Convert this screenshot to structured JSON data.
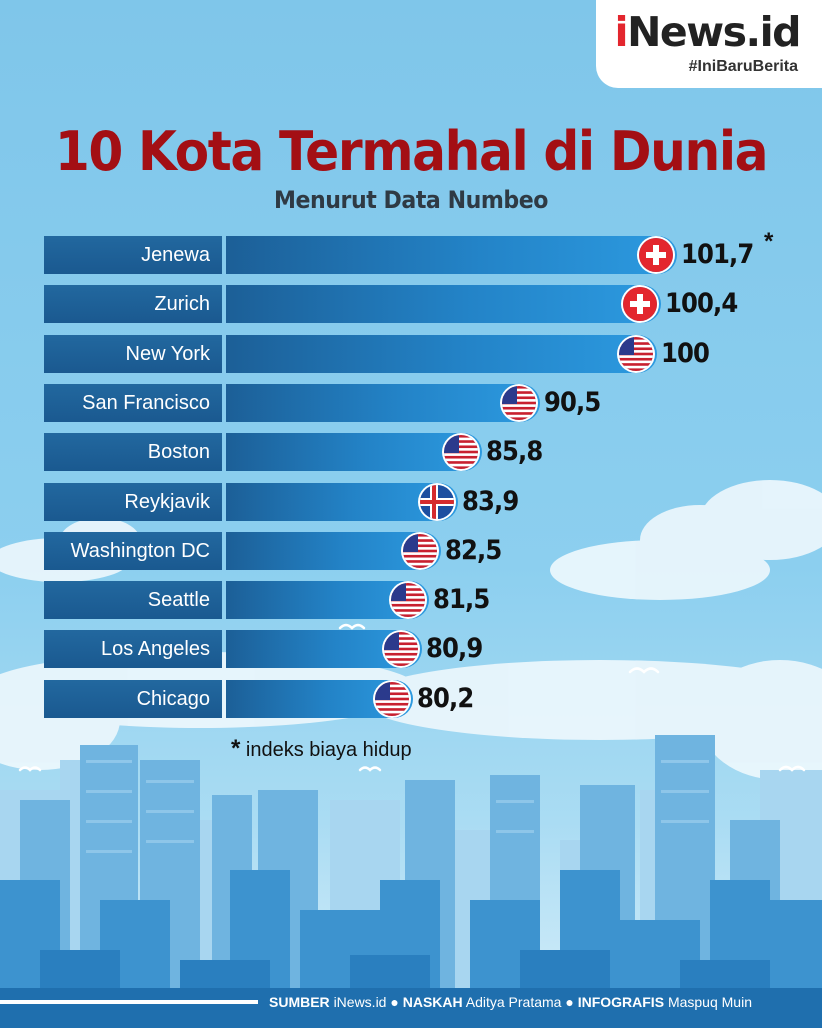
{
  "brand": {
    "name_prefix": "i",
    "name_rest": "News.id",
    "tagline": "#IniBaruBerita"
  },
  "title": "10 Kota Termahal di Dunia",
  "subtitle": "Menurut Data Numbeo",
  "chart_data": {
    "type": "bar",
    "orientation": "horizontal",
    "categories": [
      "Jenewa",
      "Zurich",
      "New York",
      "San Francisco",
      "Boston",
      "Reykjavik",
      "Washington DC",
      "Seattle",
      "Los Angeles",
      "Chicago"
    ],
    "values": [
      101.7,
      100.4,
      100,
      90.5,
      85.8,
      83.9,
      82.5,
      81.5,
      80.9,
      80.2
    ],
    "value_labels": [
      "101,7",
      "100,4",
      "100",
      "90,5",
      "85,8",
      "83,9",
      "82,5",
      "81,5",
      "80,9",
      "80,2"
    ],
    "flags": [
      "swiss-flag",
      "swiss-flag",
      "us-flag",
      "us-flag",
      "us-flag",
      "iceland-flag",
      "us-flag",
      "us-flag",
      "us-flag",
      "us-flag"
    ],
    "annotation_marker": "*",
    "colors": {
      "bar": "#2383c7",
      "city_box": "#1d5f96",
      "title": "#a30f14"
    }
  },
  "footnote": {
    "marker": "*",
    "text": "indeks biaya hidup"
  },
  "credits": {
    "source_label": "SUMBER",
    "source_value": "iNews.id",
    "writer_label": "NASKAH",
    "writer_value": "Aditya Pratama",
    "graphic_label": "INFOGRAFIS",
    "graphic_value": "Maspuq Muin",
    "separator": "●"
  }
}
